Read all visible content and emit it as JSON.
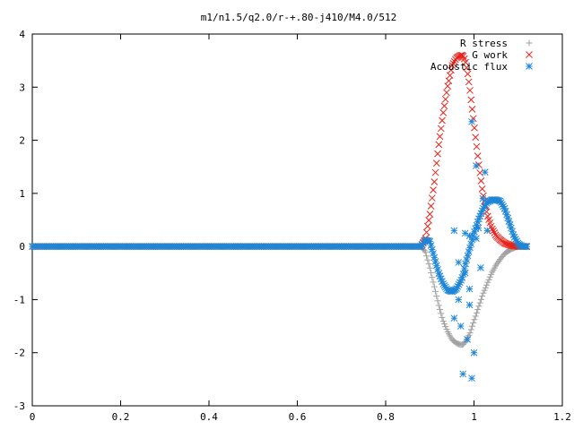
{
  "chart_data": {
    "type": "scatter",
    "title": "m1/n1.5/q2.0/r-+.80-j410/M4.0/512",
    "xlabel": "",
    "ylabel": "",
    "xlim": [
      0,
      1.2
    ],
    "ylim": [
      -3,
      4
    ],
    "xticks": [
      "0",
      "0.2",
      "0.4",
      "0.6",
      "0.8",
      "1",
      "1.2"
    ],
    "yticks": [
      "-3",
      "-2",
      "-1",
      "0",
      "1",
      "2",
      "3",
      "4"
    ],
    "legend_position": "top-right",
    "series": [
      {
        "name": "R stress",
        "marker": "plus",
        "color": "#a0a0a0",
        "x": [
          0.88,
          0.89,
          0.9,
          0.91,
          0.92,
          0.93,
          0.94,
          0.95,
          0.96,
          0.97,
          0.975,
          0.98,
          0.99,
          1.0,
          1.01,
          1.02,
          1.03,
          1.04,
          1.05,
          1.06,
          1.07,
          1.08,
          1.09,
          1.1,
          1.11,
          1.12
        ],
        "y": [
          0.0,
          -0.1,
          -0.4,
          -0.75,
          -1.1,
          -1.4,
          -1.6,
          -1.75,
          -1.82,
          -1.85,
          -1.85,
          -1.8,
          -1.65,
          -1.4,
          -1.15,
          -0.9,
          -0.7,
          -0.5,
          -0.35,
          -0.23,
          -0.13,
          -0.07,
          -0.03,
          0.0,
          0.0,
          0.0
        ]
      },
      {
        "name": "G work",
        "marker": "cross",
        "color": "#e8231a",
        "x": [
          0.88,
          0.89,
          0.9,
          0.91,
          0.92,
          0.93,
          0.94,
          0.95,
          0.96,
          0.97,
          0.975,
          0.98,
          0.985,
          0.99,
          1.0,
          1.01,
          1.02,
          1.03,
          1.04,
          1.05,
          1.06,
          1.07,
          1.08,
          1.09,
          1.1,
          1.11,
          1.12
        ],
        "y": [
          0.0,
          0.15,
          0.6,
          1.2,
          1.9,
          2.5,
          3.0,
          3.4,
          3.55,
          3.6,
          3.6,
          3.5,
          3.3,
          3.0,
          2.3,
          1.6,
          1.0,
          0.6,
          0.35,
          0.2,
          0.12,
          0.06,
          0.03,
          0.01,
          0.0,
          0.0,
          0.0
        ]
      },
      {
        "name": "Acoustic flux",
        "marker": "star",
        "color": "#1f86d6",
        "x": [
          0.88,
          0.89,
          0.9,
          0.91,
          0.92,
          0.93,
          0.94,
          0.95,
          0.96,
          0.97,
          0.975,
          0.98,
          0.99,
          1.0,
          1.01,
          1.02,
          1.03,
          1.04,
          1.05,
          1.06,
          1.07,
          1.08,
          1.09,
          1.1,
          1.11,
          1.12
        ],
        "y": [
          0.0,
          0.12,
          0.1,
          -0.2,
          -0.5,
          -0.7,
          -0.82,
          -0.85,
          -0.8,
          -0.65,
          -0.55,
          -0.35,
          -0.05,
          0.25,
          0.5,
          0.7,
          0.83,
          0.88,
          0.88,
          0.85,
          0.7,
          0.45,
          0.2,
          0.05,
          0.0,
          0.0
        ],
        "scatter_x": [
          0.955,
          0.965,
          0.97,
          0.975,
          0.98,
          0.985,
          0.99,
          0.995,
          0.995,
          1.0,
          1.005,
          1.005,
          1.01,
          1.015,
          1.02,
          1.025,
          1.03,
          0.99,
          0.98,
          0.965,
          0.955,
          0.99
        ],
        "scatter_y": [
          0.3,
          -0.3,
          -1.5,
          -2.4,
          0.25,
          -1.75,
          -0.8,
          -2.48,
          2.35,
          -2.0,
          0.15,
          1.52,
          0.35,
          -0.4,
          0.9,
          1.4,
          0.3,
          -1.1,
          -0.5,
          -1.0,
          -1.35,
          0.2
        ]
      }
    ]
  }
}
